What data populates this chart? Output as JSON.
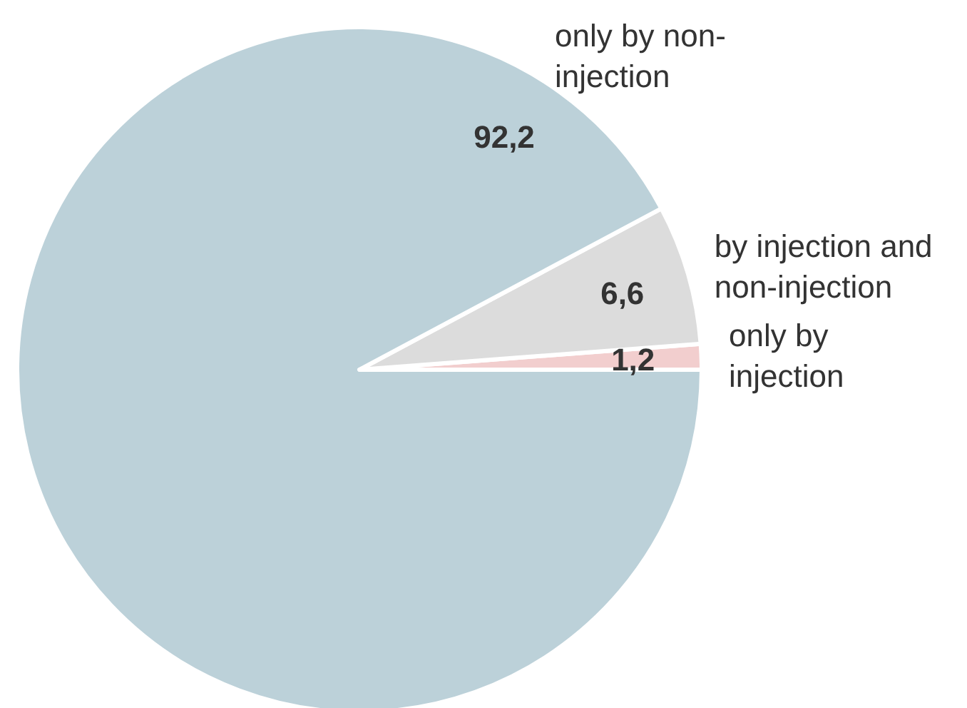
{
  "chart_data": {
    "type": "pie",
    "categories": [
      "only by injection",
      "by injection and non-injection",
      "only by non-injection"
    ],
    "values": [
      1.2,
      6.6,
      92.2
    ],
    "value_labels": [
      "1,2",
      "6,6",
      "92,2"
    ],
    "colors": [
      "#f2cece",
      "#dcdcdc",
      "#bcd1d9"
    ]
  }
}
